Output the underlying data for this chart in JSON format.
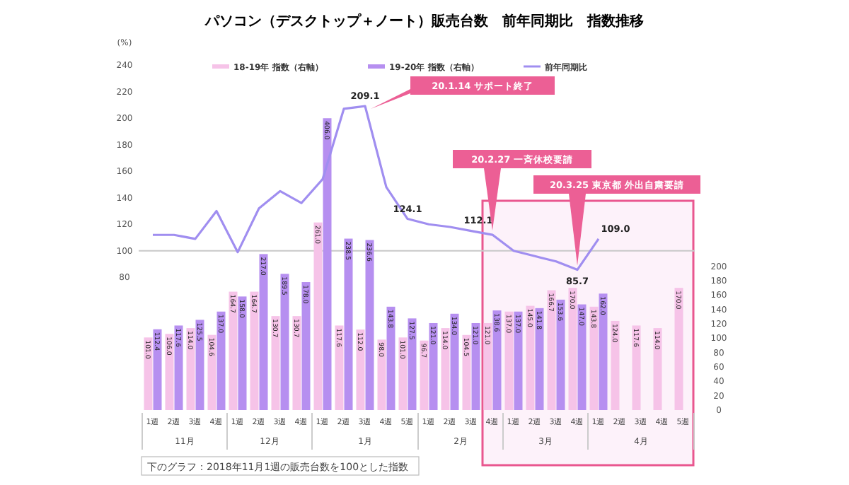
{
  "chart_data": {
    "type": "bar",
    "title": "パソコン（デスクトップ＋ノート）販売台数　前年同期比　指数推移",
    "ylabel": "(%)",
    "categories": [
      "1週",
      "2週",
      "3週",
      "4週",
      "1週",
      "2週",
      "3週",
      "4週",
      "1週",
      "2週",
      "3週",
      "4週",
      "5週",
      "1週",
      "2週",
      "3週",
      "4週",
      "1週",
      "2週",
      "3週",
      "4週",
      "1週",
      "2週",
      "3週",
      "4週",
      "5週"
    ],
    "series": [
      {
        "name": "18-19年 指数（右軸）",
        "color": "#f6c3e8",
        "axis": "y2",
        "values": [
          101.0,
          106.0,
          114.0,
          104.6,
          164.7,
          164.7,
          130.7,
          130.7,
          261.0,
          117.6,
          112.0,
          98.0,
          101.0,
          96.7,
          114.0,
          104.5,
          121.0,
          137.0,
          145.0,
          166.7,
          170.0,
          143.8,
          124.0,
          117.6,
          114.0,
          170.0
        ],
        "value_labels": [
          "101.0",
          "106.0",
          "114.0",
          "104.6",
          "164.7",
          "164.7",
          "130.7",
          "130.7",
          "261.0",
          "117.6",
          "112.0",
          "98.0",
          "101.0",
          "96.7",
          "114.0",
          "104.5",
          "121.0",
          "137.0",
          "145.0",
          "166.7",
          "170.0",
          "143.8",
          "124.0",
          "117.6",
          "114.0",
          "170.0"
        ]
      },
      {
        "name": "19-20年 指数（右軸）",
        "color": "#b68ff0",
        "axis": "y2",
        "values": [
          112.4,
          117.6,
          125.5,
          137.0,
          158.0,
          217.0,
          189.5,
          178.0,
          406.0,
          238.5,
          236.6,
          143.8,
          127.5,
          121.0,
          134.0,
          121.0,
          138.6,
          137.0,
          141.8,
          153.6,
          147.0,
          162.0,
          null,
          null,
          null,
          null
        ],
        "value_labels": [
          "112.4",
          "117.6",
          "125.5",
          "137.0",
          "158.0",
          "217.0",
          "189.5",
          "178.0",
          "406.0",
          "238.5",
          "236.6",
          "143.8",
          "127.5",
          "121.0",
          "134.0",
          "121.0",
          "138.6",
          "137.0",
          "141.8",
          "153.6",
          "147.0",
          "162.0",
          null,
          null,
          null,
          null
        ]
      },
      {
        "name": "前年同期比",
        "type": "line",
        "color": "#a08ef0",
        "values": [
          112,
          112,
          109,
          130,
          99,
          132,
          145,
          136,
          154,
          207,
          209.1,
          148,
          124.1,
          120,
          118,
          115,
          112.1,
          100,
          96,
          92,
          85.7,
          109.0,
          null,
          null,
          null,
          null
        ],
        "value_labels": [
          null,
          null,
          null,
          null,
          null,
          null,
          null,
          null,
          null,
          null,
          "209.1",
          null,
          "124.1",
          null,
          null,
          null,
          "112.1",
          null,
          null,
          null,
          "85.7",
          "109.0",
          null,
          null,
          null,
          null
        ]
      }
    ],
    "ylim": [
      -20,
      240
    ],
    "yticks": [
      80,
      100,
      120,
      140,
      160,
      180,
      200,
      220,
      240
    ],
    "y2lim": [
      0,
      480
    ],
    "y2ticks": [
      0,
      20,
      40,
      60,
      80,
      100,
      120,
      140,
      160,
      180,
      200
    ],
    "ref_lines": [
      {
        "axis": "y",
        "value": 100,
        "color": "#c8c8c8"
      }
    ],
    "legend": "top",
    "annotations": [
      "11月",
      "12月",
      "1月",
      "2月",
      "3月",
      "4月",
      "20.1.14 サポート終了",
      "20.2.27 一斉休校要請",
      "20.3.25 東京都 外出自粛要請",
      "下のグラフ：2018年11月1週の販売台数を100とした指数"
    ]
  }
}
